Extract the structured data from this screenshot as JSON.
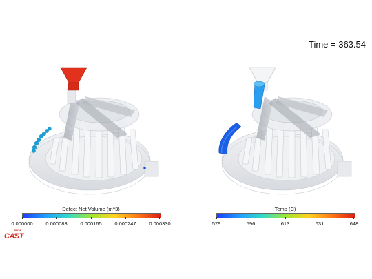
{
  "time_label": "Time = 363.54",
  "legends": {
    "left": {
      "title": "Defect Net Volume (m^3)",
      "ticks": [
        "0.000000",
        "0.000083",
        "0.000165",
        "0.000247",
        "0.000330"
      ],
      "gradient": [
        "#1e3cff",
        "#1ea0ff",
        "#32dcc8",
        "#a0e632",
        "#ffd21e",
        "#ff7814",
        "#dc1e14"
      ]
    },
    "right": {
      "title": "Temp (C)",
      "ticks": [
        "579",
        "596",
        "613",
        "631",
        "648"
      ],
      "gradient": [
        "#1e3cff",
        "#1ea0ff",
        "#32dcc8",
        "#a0e632",
        "#ffd21e",
        "#ff7814",
        "#dc1e14"
      ]
    }
  },
  "logo": {
    "text": "CAST",
    "prefix": "FLOW-3D"
  },
  "colors": {
    "defect_high": "#e8301c",
    "defect_low": "#1aa0d8",
    "temp_low": "#1a5fe8",
    "temp_mid": "#2a9ff0",
    "casting_shell": "#d8dce0",
    "casting_dark": "#a8adb3"
  }
}
